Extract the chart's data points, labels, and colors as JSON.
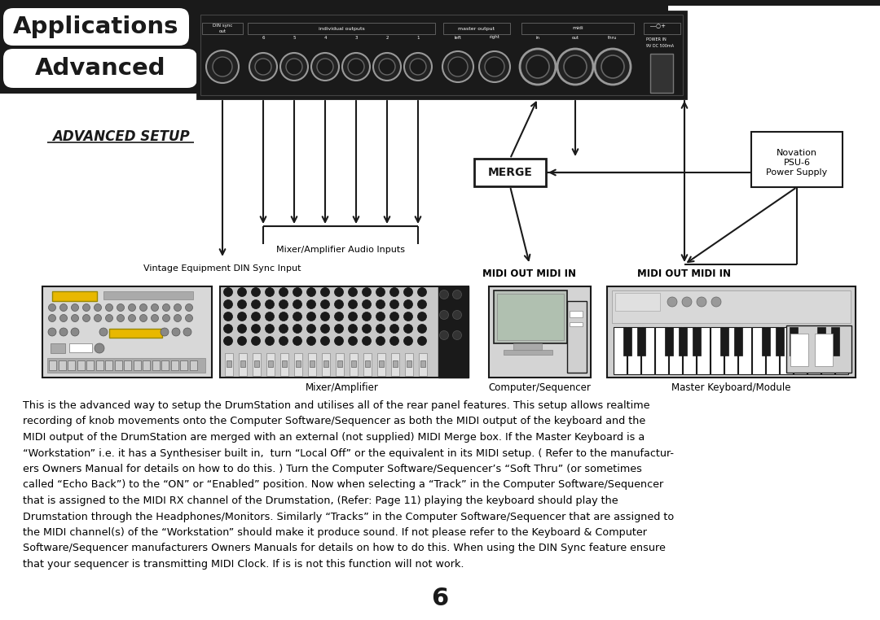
{
  "bg_color": "#ffffff",
  "title_line1": "Applications",
  "title_line2": "Advanced",
  "section_title": "ADVANCED SETUP",
  "body_lines": [
    "This is the advanced way to setup the DrumStation and utilises all of the rear panel features. This setup allows realtime",
    "recording of knob movements onto the Computer Software/Sequencer as both the MIDI output of the keyboard and the",
    "MIDI output of the DrumStation are merged with an external (not supplied) MIDI Merge box. If the Master Keyboard is a",
    "“Workstation” i.e. it has a Synthesiser built in,  turn “Local Off” or the equivalent in its MIDI setup. ( Refer to the manufactur-",
    "ers Owners Manual for details on how to do this. ) Turn the Computer Software/Sequencer’s “Soft Thru” (or sometimes",
    "called “Echo Back”) to the “ON” or “Enabled” position. Now when selecting a “Track” in the Computer Software/Sequencer",
    "that is assigned to the MIDI RX channel of the Drumstation, (Refer: Page 11) playing the keyboard should play the",
    "Drumstation through the Headphones/Monitors. Similarly “Tracks” in the Computer Software/Sequencer that are assigned to",
    "the MIDI channel(s) of the “Workstation” should make it produce sound. If not please refer to the Keyboard & Computer",
    "Software/Sequencer manufacturers Owners Manuals for details on how to do this. When using the DIN Sync feature ensure",
    "that your sequencer is transmitting MIDI Clock. If is is not this function will not work."
  ],
  "page_number": "6",
  "label_din_sync": "Vintage Equipment DIN Sync Input",
  "label_mixer_inputs": "Mixer/Amplifier Audio Inputs",
  "label_midi_out_in_1": "MIDI OUT MIDI IN",
  "label_midi_out_in_2": "MIDI OUT MIDI IN",
  "label_mixer_short": "Mixer/Amplifier",
  "label_computer": "Computer/Sequencer",
  "label_keyboard": "Master Keyboard/Module",
  "label_merge": "MERGE",
  "label_novation_1": "Novation",
  "label_novation_2": "PSU-6",
  "label_novation_3": "Power Supply",
  "panel_label_din_sync": "DIN sync",
  "panel_label_out": "out",
  "panel_label_individual": "individual outputs",
  "panel_label_master": "master output",
  "panel_label_left": "left",
  "panel_label_right": "right",
  "panel_label_midi": "midi",
  "panel_label_in": "in",
  "panel_label_out2": "out",
  "panel_label_thru": "thru",
  "panel_label_power1": "POWER IN",
  "panel_label_power2": "9V DC 500mA",
  "black_color": "#1a1a1a",
  "gray_dark": "#555555",
  "gray_mid": "#888888",
  "gray_light": "#cccccc",
  "gray_device": "#d0d0d0",
  "yellow_color": "#e8b800",
  "screen_color": "#b0c0b0"
}
